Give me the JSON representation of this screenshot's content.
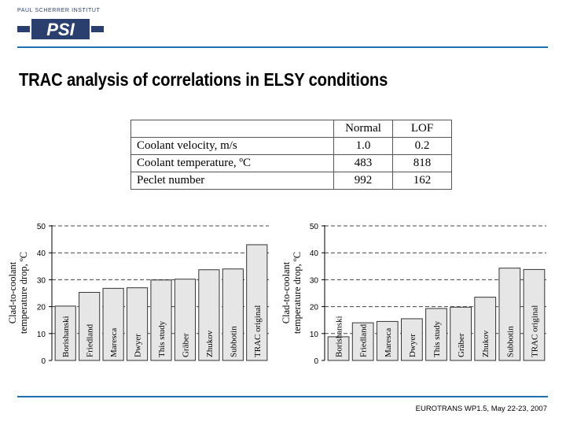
{
  "logo": {
    "institute": "PAUL SCHERRER INSTITUT",
    "mark": "PSI"
  },
  "title": "TRAC analysis of correlations in ELSY conditions",
  "table": {
    "headers": [
      "",
      "Normal",
      "LOF"
    ],
    "rows": [
      {
        "label": "Coolant velocity, m/s",
        "normal": "1.0",
        "lof": "0.2"
      },
      {
        "label": "Coolant temperature, ºC",
        "normal": "483",
        "lof": "818"
      },
      {
        "label": "Peclet number",
        "normal": "992",
        "lof": "162"
      }
    ]
  },
  "chart_data": [
    {
      "type": "bar",
      "categories": [
        "Borishanski",
        "Friedland",
        "Maresca",
        "Dwyer",
        "This study",
        "Gräber",
        "Zhukov",
        "Subbotin",
        "TRAC original"
      ],
      "values": [
        20.2,
        25.3,
        26.8,
        27.0,
        29.9,
        30.2,
        33.7,
        34.0,
        43.0
      ],
      "ylabel": "Clad-to-coolant temperature drop, ºC",
      "ylim": [
        0,
        50
      ],
      "yticks": [
        "0",
        "10",
        "20",
        "30",
        "40",
        "50"
      ],
      "grid": "dashed horizontal"
    },
    {
      "type": "bar",
      "categories": [
        "Borishanski",
        "Friedland",
        "Maresca",
        "Dwyer",
        "This study",
        "Gräber",
        "Zhukov",
        "Subbotin",
        "TRAC original"
      ],
      "values": [
        8.8,
        14.0,
        14.5,
        15.5,
        19.3,
        19.8,
        23.5,
        34.3,
        33.8
      ],
      "ylabel": "Clad-to-coolant temperature drop, ºC",
      "ylim": [
        0,
        50
      ],
      "yticks": [
        "0",
        "10",
        "20",
        "30",
        "40",
        "50"
      ],
      "grid": "dashed horizontal"
    }
  ],
  "colors": {
    "accent_line": "#1d6fae",
    "bar_fill": "#e6e6e6",
    "logo_blue": "#2a3f6e"
  },
  "footer": "EUROTRANS WP1.5, May 22-23, 2007"
}
